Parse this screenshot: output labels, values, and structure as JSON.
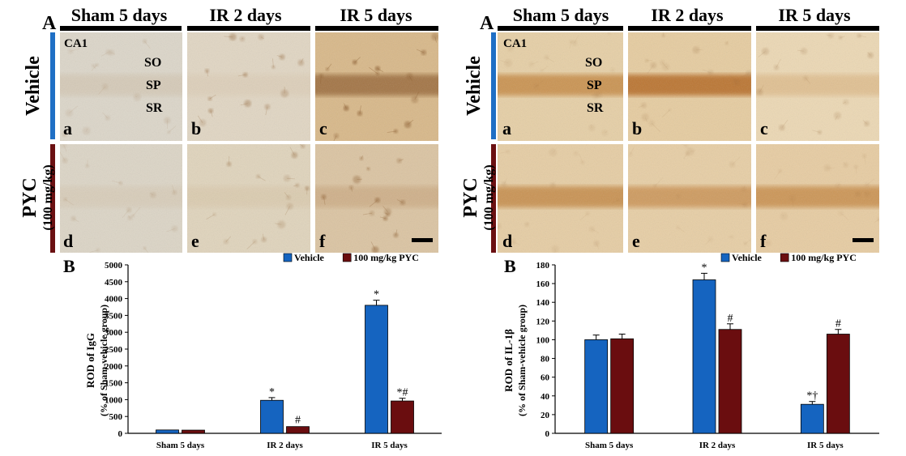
{
  "colors": {
    "vehicle": "#1f6fc5",
    "pyc": "#6b1012",
    "vehicle_bar": "#1564c0",
    "pyc_bar": "#6a0d0f"
  },
  "panels": [
    {
      "panel_letter": "A",
      "column_headers": [
        "Sham 5 days",
        "IR 2 days",
        "IR 5 days"
      ],
      "region_label": "CA1",
      "layer_labels": [
        "SO",
        "SP",
        "SR"
      ],
      "row_labels": [
        "Vehicle",
        "PYC",
        "(100 mg/kg)"
      ],
      "image_letters": [
        "a",
        "b",
        "c",
        "d",
        "e",
        "f"
      ],
      "stain": "igg"
    },
    {
      "panel_letter": "A",
      "column_headers": [
        "Sham 5 days",
        "IR 2 days",
        "IR 5 days"
      ],
      "region_label": "CA1",
      "layer_labels": [
        "SO",
        "SP",
        "SR"
      ],
      "row_labels": [
        "Vehicle",
        "PYC",
        "(100 mg/kg)"
      ],
      "image_letters": [
        "a",
        "b",
        "c",
        "d",
        "e",
        "f"
      ],
      "stain": "il1b"
    }
  ],
  "chart_data": [
    {
      "type": "bar",
      "panel_letter": "B",
      "categories": [
        "Sham 5 days",
        "IR 2 days",
        "IR 5 days"
      ],
      "series": [
        {
          "name": "Vehicle",
          "values": [
            100,
            980,
            3800
          ],
          "errors": [
            0,
            80,
            150
          ],
          "marks": [
            "",
            "*",
            "*"
          ]
        },
        {
          "name": "100 mg/kg PYC",
          "values": [
            95,
            200,
            960
          ],
          "errors": [
            0,
            0,
            80
          ],
          "marks": [
            "",
            "#",
            "*#"
          ]
        }
      ],
      "ylabel": "ROD of IgG",
      "ylabel2": "(% of Sham-vehicle group)",
      "ylim": [
        0,
        5000
      ],
      "yticks": [
        0,
        500,
        1000,
        1500,
        2000,
        2500,
        3000,
        3500,
        4000,
        4500,
        5000
      ],
      "legend_position": "top-right",
      "grid": false
    },
    {
      "type": "bar",
      "panel_letter": "B",
      "categories": [
        "Sham 5 days",
        "IR 2 days",
        "IR 5 days"
      ],
      "series": [
        {
          "name": "Vehicle",
          "values": [
            100,
            164,
            31
          ],
          "errors": [
            5,
            7,
            3
          ],
          "marks": [
            "",
            "*",
            "*†"
          ]
        },
        {
          "name": "100 mg/kg PYC",
          "values": [
            101,
            111,
            106
          ],
          "errors": [
            5,
            6,
            5
          ],
          "marks": [
            "",
            "#",
            "#"
          ]
        }
      ],
      "ylabel": "ROD of IL-1β",
      "ylabel2": "(% of Sham-vehicle group)",
      "ylim": [
        0,
        180
      ],
      "yticks": [
        0,
        20,
        40,
        60,
        80,
        100,
        120,
        140,
        160,
        180
      ],
      "legend_position": "top-right",
      "grid": false
    }
  ]
}
